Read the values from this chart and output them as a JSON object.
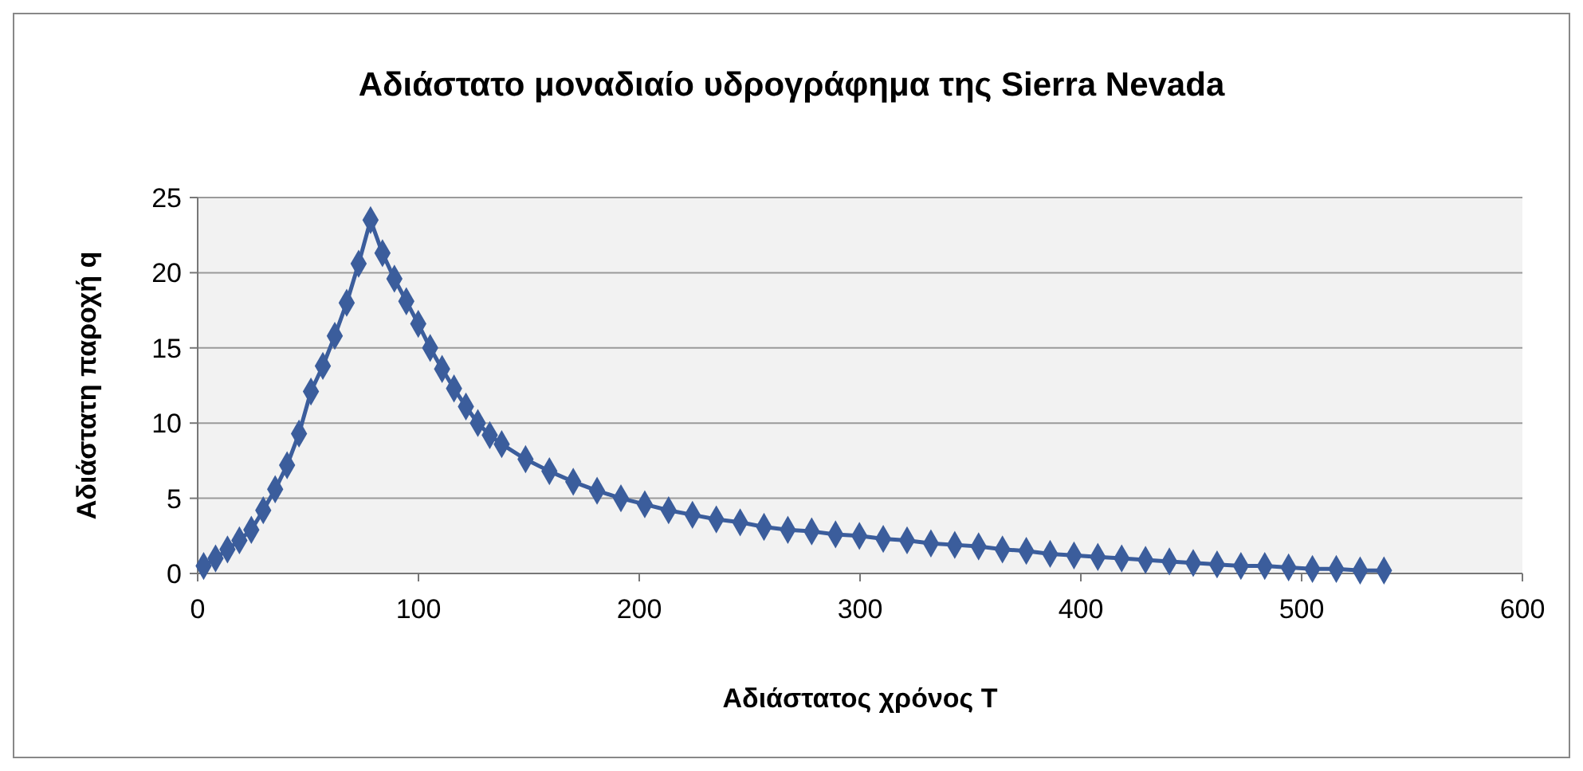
{
  "chart_data": {
    "type": "line",
    "title": "Αδιάστατο μοναδιαίο υδρογράφημα της Sierra Nevada",
    "xlabel": "Αδιάστατος χρόνος T",
    "ylabel": "Αδιάστατη παροχή q",
    "x": [
      2.7,
      8.1,
      13.5,
      18.9,
      24.3,
      29.7,
      35.1,
      40.5,
      45.9,
      51.3,
      56.7,
      62.1,
      67.5,
      72.9,
      78.3,
      83.7,
      89.1,
      94.5,
      99.9,
      105.3,
      110.7,
      116.1,
      121.5,
      126.9,
      132.3,
      137.7,
      148.5,
      159.3,
      170.1,
      180.9,
      191.7,
      202.5,
      213.3,
      224.1,
      234.9,
      245.7,
      256.5,
      267.3,
      278.1,
      288.9,
      299.7,
      310.5,
      321.3,
      332.1,
      342.9,
      353.7,
      364.5,
      375.3,
      386.1,
      396.9,
      407.7,
      418.5,
      429.3,
      440.1,
      450.9,
      461.7,
      472.5,
      483.3,
      494.1,
      504.9,
      515.7,
      526.5,
      537.3
    ],
    "series": [
      {
        "color": "#3b5d9c",
        "values": [
          0.5,
          1.0,
          1.6,
          2.2,
          2.9,
          4.2,
          5.6,
          7.2,
          9.3,
          12.1,
          13.8,
          15.8,
          18.0,
          20.6,
          23.5,
          21.3,
          19.6,
          18.1,
          16.6,
          15.0,
          13.6,
          12.3,
          11.1,
          10.0,
          9.2,
          8.6,
          7.6,
          6.8,
          6.1,
          5.5,
          5.0,
          4.6,
          4.2,
          3.9,
          3.6,
          3.4,
          3.1,
          2.9,
          2.8,
          2.6,
          2.5,
          2.3,
          2.2,
          2.0,
          1.9,
          1.8,
          1.6,
          1.5,
          1.3,
          1.2,
          1.1,
          1.0,
          0.9,
          0.8,
          0.7,
          0.6,
          0.5,
          0.5,
          0.4,
          0.3,
          0.3,
          0.2,
          0.2
        ]
      }
    ],
    "xlim": [
      0,
      600
    ],
    "xticks": [
      0,
      100,
      200,
      300,
      400,
      500,
      600
    ],
    "ylim": [
      0,
      25
    ],
    "yticks": [
      0,
      5,
      10,
      15,
      20,
      25
    ],
    "grid": "y",
    "marker": "diamond",
    "line_style": "solid"
  }
}
